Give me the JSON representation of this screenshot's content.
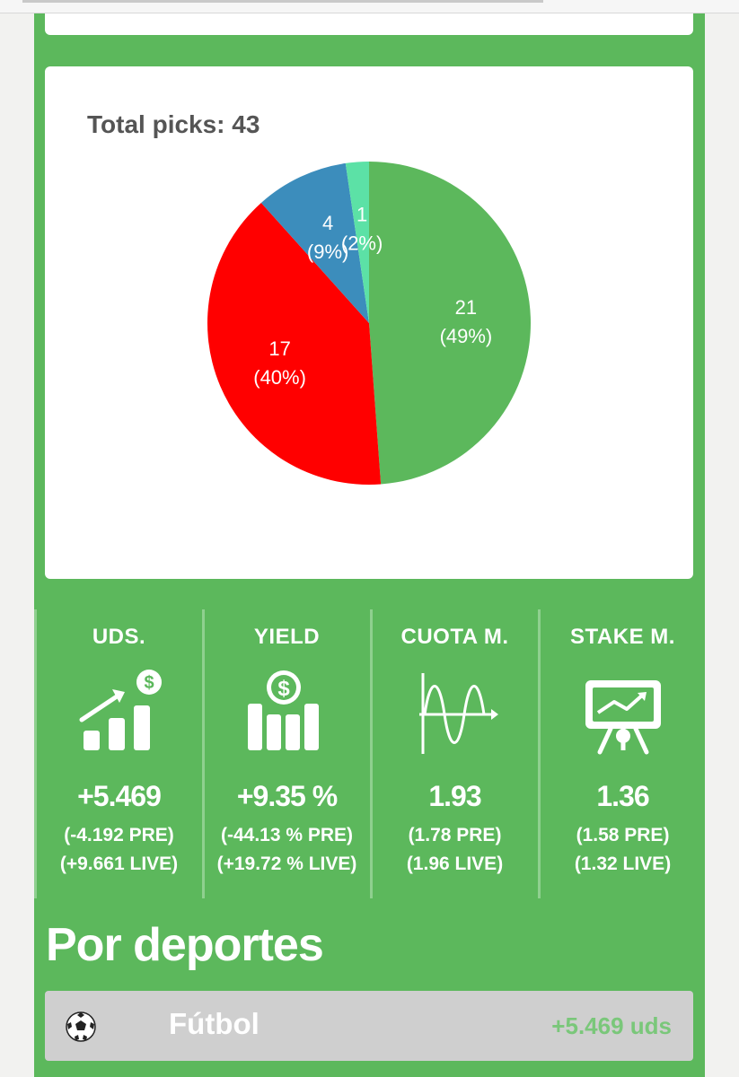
{
  "chart": {
    "title": "Total picks: 43"
  },
  "chart_data": {
    "type": "pie",
    "title": "Total picks: 43",
    "slices": [
      {
        "value": 21,
        "label": "21",
        "percent_label": "(49%)",
        "color": "#5cb85c"
      },
      {
        "value": 17,
        "label": "17",
        "percent_label": "(40%)",
        "color": "#ff0000"
      },
      {
        "value": 4,
        "label": "4",
        "percent_label": "(9%)",
        "color": "#3c8dbc"
      },
      {
        "value": 1,
        "label": "1",
        "percent_label": "(2%)",
        "color": "#5ce1a6"
      }
    ]
  },
  "stats": [
    {
      "label": "UDS.",
      "icon": "money-growth-icon",
      "main": "+5.469",
      "pre": "(-4.192 PRE)",
      "live": "(+9.661 LIVE)"
    },
    {
      "label": "YIELD",
      "icon": "dollar-bars-icon",
      "main": "+9.35 %",
      "pre": "(-44.13 % PRE)",
      "live": "(+19.72 % LIVE)"
    },
    {
      "label": "CUOTA M.",
      "icon": "wave-graph-icon",
      "main": "1.93",
      "pre": "(1.78 PRE)",
      "live": "(1.96 LIVE)"
    },
    {
      "label": "STAKE M.",
      "icon": "presentation-board-icon",
      "main": "1.36",
      "pre": "(1.58 PRE)",
      "live": "(1.32 LIVE)"
    }
  ],
  "section": {
    "title": "Por deportes"
  },
  "sports": [
    {
      "name": "Fútbol",
      "icon": "soccer-ball-icon",
      "value": "+5.469 uds"
    }
  ],
  "colors": {
    "panel_green": "#5cb85c",
    "loss_red": "#ff0000",
    "void_blue": "#3c8dbc",
    "other_mint": "#5ce1a6"
  }
}
